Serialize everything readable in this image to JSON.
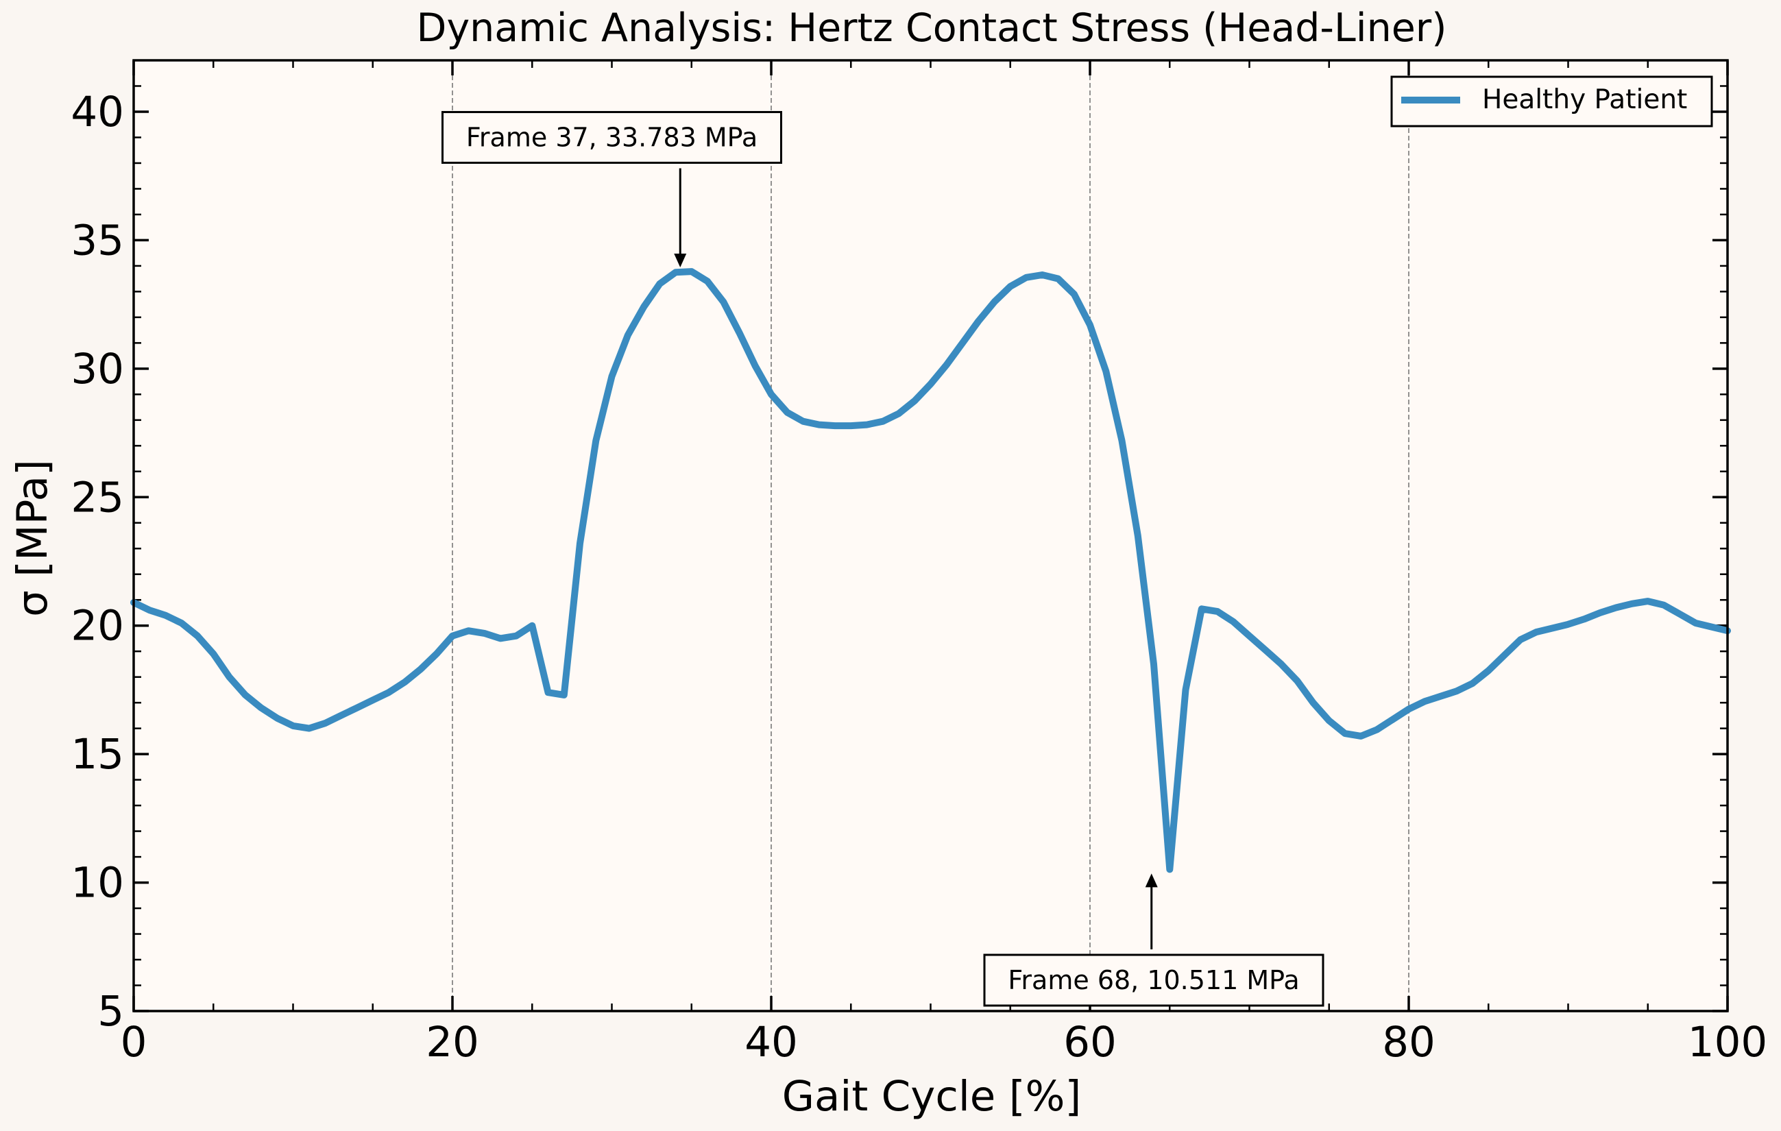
{
  "chart_data": {
    "type": "line",
    "title": "Dynamic Analysis: Hertz Contact Stress (Head-Liner)",
    "xlabel": "Gait Cycle [%]",
    "ylabel": "σ [MPa]",
    "xlim": [
      0,
      100
    ],
    "ylim": [
      5,
      42
    ],
    "xticks": [
      0,
      20,
      40,
      60,
      80,
      100
    ],
    "yticks": [
      5,
      10,
      15,
      20,
      25,
      30,
      35,
      40
    ],
    "grid": "vertical dashed lines at major x ticks",
    "legend_position": "top-right",
    "colors": {
      "line": "#3a8bc0",
      "plot_background": "#fffaf6",
      "page_background": "#faf6f2",
      "grid": "#777777"
    },
    "series": [
      {
        "name": "Healthy Patient",
        "x": [
          0,
          1,
          2,
          3,
          4,
          5,
          6,
          7,
          8,
          9,
          10,
          11,
          12,
          13,
          14,
          15,
          16,
          17,
          18,
          19,
          20,
          21,
          22,
          23,
          24,
          25,
          26,
          27,
          28,
          29,
          30,
          31,
          32,
          33,
          34,
          35,
          36,
          37,
          38,
          39,
          40,
          41,
          42,
          43,
          44,
          45,
          46,
          47,
          48,
          49,
          50,
          51,
          52,
          53,
          54,
          55,
          56,
          57,
          58,
          59,
          60,
          61,
          62,
          63,
          64,
          65,
          66,
          67,
          68,
          69,
          70,
          71,
          72,
          73,
          74,
          75,
          76,
          77,
          78,
          79,
          80,
          81,
          82,
          83,
          84,
          85,
          86,
          87,
          88,
          89,
          90,
          91,
          92,
          93,
          94,
          95,
          96,
          97,
          98,
          99,
          100
        ],
        "y": [
          20.9,
          20.6,
          20.4,
          20.1,
          19.6,
          18.9,
          18.0,
          17.3,
          16.8,
          16.4,
          16.1,
          16.0,
          16.2,
          16.5,
          16.8,
          17.1,
          17.4,
          17.8,
          18.3,
          18.9,
          19.6,
          19.8,
          19.7,
          19.5,
          19.6,
          20.0,
          17.4,
          17.3,
          23.2,
          27.2,
          29.7,
          31.3,
          32.4,
          33.3,
          33.75,
          33.78,
          33.4,
          32.6,
          31.4,
          30.1,
          29.0,
          28.3,
          27.95,
          27.82,
          27.78,
          27.78,
          27.82,
          27.95,
          28.25,
          28.75,
          29.4,
          30.15,
          31.0,
          31.85,
          32.6,
          33.2,
          33.55,
          33.65,
          33.5,
          32.9,
          31.7,
          29.9,
          27.2,
          23.5,
          18.5,
          10.51,
          17.5,
          20.65,
          20.55,
          20.15,
          19.6,
          19.05,
          18.5,
          17.85,
          17.0,
          16.3,
          15.8,
          15.7,
          15.95,
          16.35,
          16.75,
          17.05,
          17.25,
          17.45,
          17.75,
          18.25,
          18.85,
          19.45,
          19.75,
          19.9,
          20.05,
          20.25,
          20.5,
          20.7,
          20.85,
          20.95,
          20.8,
          20.45,
          20.1,
          19.95,
          19.8
        ]
      }
    ],
    "annotations": [
      {
        "text": "Frame 37, 33.783 MPa",
        "target": [
          34.29,
          33.783
        ],
        "box": [
          30.0,
          39.0
        ],
        "arrow": "down"
      },
      {
        "text": "Frame 68, 10.511 MPa",
        "target": [
          63.86,
          10.511
        ],
        "box": [
          64.0,
          6.2
        ],
        "arrow": "up"
      }
    ]
  }
}
